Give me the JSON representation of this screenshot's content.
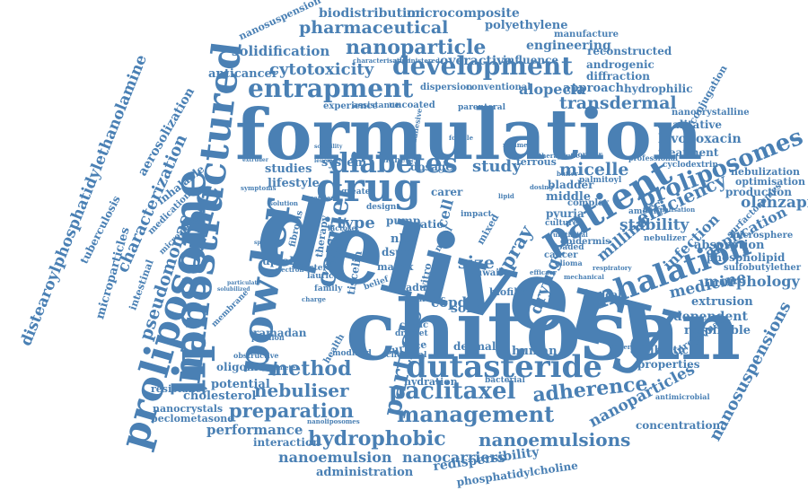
{
  "colors": {
    "word": "#4a80b4",
    "background": "#ffffff"
  },
  "words": [
    "delivery",
    "chitosan",
    "formulation",
    "liposome",
    "proliposome",
    "nanostructured",
    "powder",
    "patient",
    "drug",
    "dutasteride",
    "inhalation",
    "paclitaxel",
    "entrapment",
    "development",
    "diabetes",
    "particle",
    "carrier",
    "management",
    "nebuliser",
    "hydrophobic",
    "nanoemulsions",
    "proliposomes",
    "adherence",
    "nanoparticle",
    "pharmaceutical",
    "preparation",
    "method",
    "medicine",
    "spray",
    "cytotoxicity",
    "solidification",
    "stability",
    "efficiency",
    "micelle",
    "transdermal",
    "size",
    "study",
    "alopecia",
    "nanosuspensions",
    "nanoparticles",
    "olanzapine",
    "infection",
    "application",
    "drying",
    "morphology",
    "characterization",
    "pseudomonas",
    "microparticles",
    "distearoylphosphatidylethanolamine",
    "aerosolization",
    "tuberculosis",
    "intestinal",
    "inhalable",
    "nanosuspension",
    "biodistribution",
    "microcomposite",
    "polyethylene",
    "manufacture",
    "engineering",
    "reconstructed",
    "androgenic",
    "diffraction",
    "approach",
    "hydrophilic",
    "conjugation",
    "nanocrystalline",
    "qualitative",
    "levofloxacin",
    "treatment",
    "nebulization",
    "optimisation",
    "production",
    "absorption",
    "phospholipid",
    "sulfobutylether",
    "microsphere",
    "surfactosomes",
    "extrusion",
    "dependent",
    "respirable",
    "antibiotic",
    "dipropionate",
    "properties",
    "concentration",
    "nanocarriers",
    "redispersibility",
    "phosphatidylcholine",
    "administration",
    "nanoemulsion",
    "interaction",
    "performance",
    "beclometasone",
    "nanocrystals",
    "cholesterol",
    "resistance",
    "potential",
    "oligomer",
    "human",
    "dermal",
    "solid",
    "copd",
    "type",
    "vesicle",
    "lifestyle",
    "system",
    "studies",
    "pump",
    "cell",
    "carer",
    "middle",
    "pyuria",
    "bladder",
    "ferrous",
    "dosage",
    "higher",
    "epidermis",
    "cancer",
    "milling",
    "vitro",
    "uptake",
    "ramadan",
    "health",
    "anticancer",
    "experience",
    "assistance",
    "uncoated",
    "parenteral",
    "dispersion",
    "conventional",
    "overactive",
    "influence",
    "administered",
    "characterisation",
    "ratio",
    "nlcs",
    "dspe",
    "matrix",
    "belief",
    "family",
    "adult",
    "chronic",
    "biofilm",
    "droplet",
    "surface",
    "chemical",
    "hydration",
    "bacterial",
    "topical",
    "kuwait",
    "mixed",
    "impact",
    "culture",
    "loaded",
    "complex",
    "palmitoyl",
    "cyclodextrin",
    "professional",
    "therapeutic",
    "internalisation",
    "nebulizer",
    "amount",
    "antimicrobial",
    "generation",
    "nanoliposomes",
    "cystic",
    "novel",
    "respiratory",
    "glioma",
    "mechanical",
    "particulate",
    "therapy",
    "fibrosis",
    "medication",
    "microaerosol",
    "membrane",
    "spherical",
    "electron",
    "eastern",
    "lauric",
    "tiscelin",
    "modified",
    "obstructive",
    "papillon",
    "parameter",
    "leucine",
    "solubility",
    "extruder",
    "lactose",
    "follicle",
    "charge",
    "solution",
    "symptoms",
    "solubilized",
    "urothelial",
    "mucoadhesive",
    "efficacy",
    "former",
    "regimen",
    "buffer",
    "dosing",
    "lipid",
    "carrier",
    "design",
    "greater"
  ]
}
